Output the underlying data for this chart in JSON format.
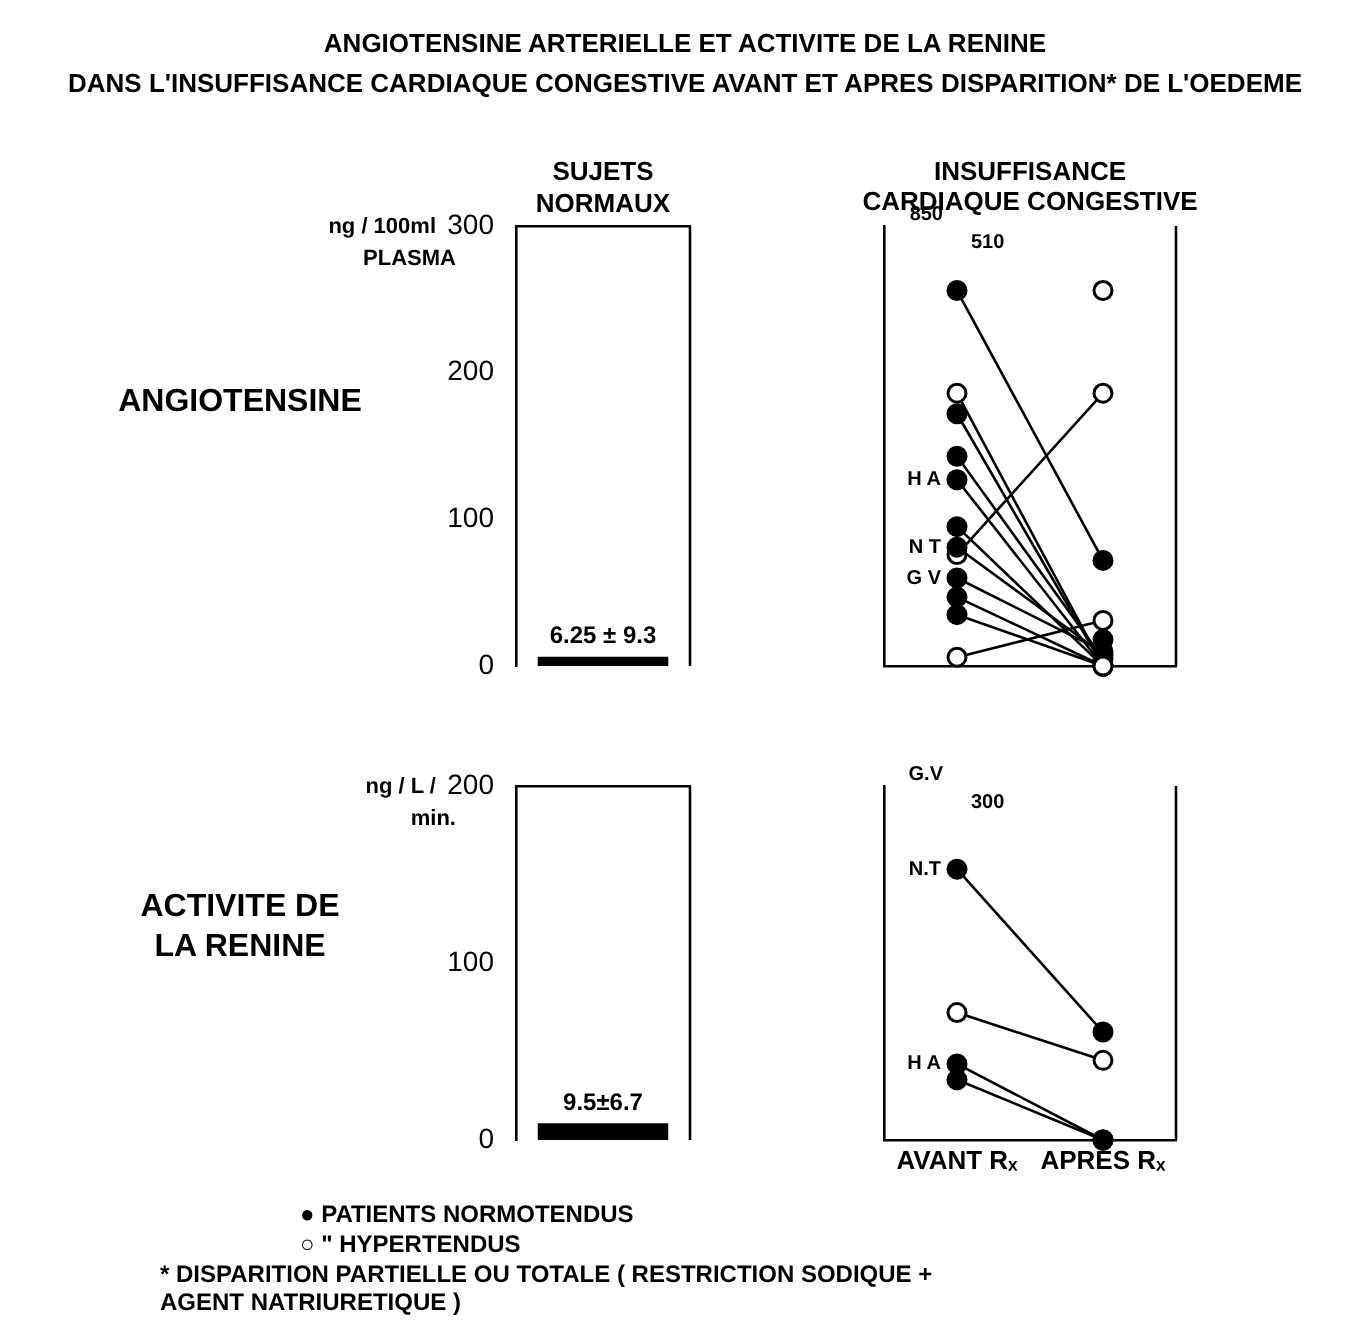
{
  "chart_data": [
    {
      "type": "bar",
      "title": "ANGIOTENSINE ARTERIELLE ET ACTIVITE DE LA RENINE",
      "subtitle": "DANS L'INSUFFISANCE CARDIAQUE CONGESTIVE AVANT ET APRES DISPARITION* DE L'OEDEME",
      "ylabel": "ANGIOTENSINE",
      "annotations": [
        "ng / 100ml PLASMA"
      ],
      "categories": [
        "SUJETS NORMAUX"
      ],
      "values": [
        6.25
      ],
      "value_labels": [
        "6.25 ± 9.3"
      ],
      "color": "#000000",
      "ylim": [
        0,
        300
      ],
      "yticks": [
        0,
        100,
        200,
        300
      ],
      "grid": false,
      "legend": false
    },
    {
      "type": "line",
      "title": "INSUFFISANCE CARDIAQUE CONGESTIVE",
      "categories": [
        "AVANT Rₓ",
        "APRES Rₓ"
      ],
      "ylim": [
        0,
        300
      ],
      "tick_labels": false,
      "marker": "circle",
      "grid": false,
      "legend": false,
      "series": [
        {
          "color": "#000000",
          "values": [
            null,
            18
          ]
        },
        {
          "color": "#ffffff",
          "values": [
            null,
            256
          ]
        },
        {
          "color": "#000000",
          "values": [
            256,
            72
          ]
        },
        {
          "color": "#ffffff",
          "values": [
            186,
            0
          ]
        },
        {
          "color": "#000000",
          "values": [
            172,
            0
          ]
        },
        {
          "color": "#000000",
          "values": [
            143,
            5
          ]
        },
        {
          "color": "#000000",
          "values": [
            127,
            0
          ]
        },
        {
          "color": "#000000",
          "values": [
            95,
            0
          ]
        },
        {
          "color": "#000000",
          "values": [
            81,
            8
          ]
        },
        {
          "color": "#000000",
          "values": [
            60,
            10
          ]
        },
        {
          "color": "#000000",
          "values": [
            47,
            0
          ]
        },
        {
          "color": "#000000",
          "values": [
            35,
            0
          ]
        },
        {
          "color": "#ffffff",
          "values": [
            76,
            186
          ]
        },
        {
          "color": "#ffffff",
          "values": [
            6,
            31
          ]
        }
      ],
      "annotations": [
        "850",
        "510",
        {
          "text": "H A",
          "x": "AVANT Rₓ",
          "y": 127
        },
        {
          "text": "N T",
          "x": "AVANT Rₓ",
          "y": 81
        },
        {
          "text": "G V",
          "x": "AVANT Rₓ",
          "y": 60
        }
      ]
    },
    {
      "type": "bar",
      "ylabel": "ACTIVITE DE LA RENINE",
      "annotations": [
        "ng / L / min."
      ],
      "categories": [
        null
      ],
      "values": [
        9.5
      ],
      "value_labels": [
        "9.5±6.7"
      ],
      "color": "#000000",
      "ylim": [
        0,
        200
      ],
      "yticks": [
        0,
        100,
        200
      ],
      "grid": false,
      "legend": false
    },
    {
      "type": "line",
      "categories": [
        "AVANT Rₓ",
        "APRES Rₓ"
      ],
      "ylim": [
        0,
        200
      ],
      "tick_labels": "x",
      "marker": "circle",
      "grid": false,
      "legend": false,
      "series": [
        {
          "color": "#000000",
          "values": [
            null,
            0
          ]
        },
        {
          "color": "#000000",
          "values": [
            153,
            61
          ]
        },
        {
          "color": "#ffffff",
          "values": [
            72,
            45
          ]
        },
        {
          "color": "#000000",
          "values": [
            43,
            0
          ]
        },
        {
          "color": "#000000",
          "values": [
            34,
            0
          ]
        }
      ],
      "annotations": [
        "G.V",
        "300",
        {
          "text": "N.T",
          "x": "AVANT Rₓ",
          "y": 153
        },
        {
          "text": "H A",
          "x": "AVANT Rₓ",
          "y": 43
        },
        "● PATIENTS NORMOTENDUS",
        "○ \"  HYPERTENDUS",
        "* DISPARITION PARTIELLE OU TOTALE ( RESTRICTION SODIQUE + AGENT NATRIURETIQUE )"
      ]
    }
  ]
}
